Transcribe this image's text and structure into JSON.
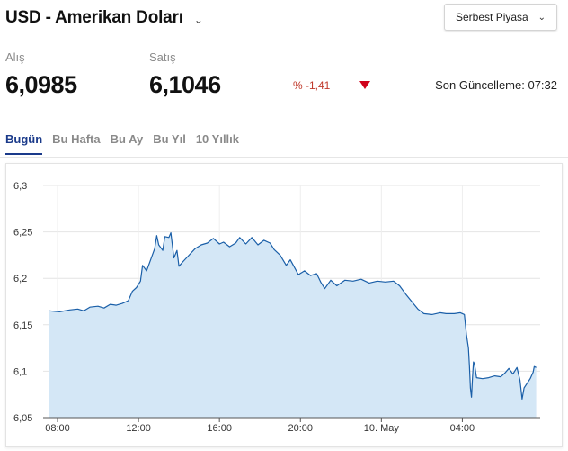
{
  "header": {
    "title": "USD - Amerikan Doları",
    "title_chevron": "⌄",
    "market_select": "Serbest Piyasa",
    "market_chevron": "⌄"
  },
  "quote": {
    "buy_label": "Alış",
    "buy_value": "6,0985",
    "sell_label": "Satış",
    "sell_value": "6,1046",
    "change_text": "% -1,41",
    "change_direction": "down",
    "change_color": "#c0392b",
    "last_update": "Son Güncelleme: 07:32"
  },
  "tabs": [
    {
      "label": "Bugün",
      "active": true
    },
    {
      "label": "Bu Hafta",
      "active": false
    },
    {
      "label": "Bu Ay",
      "active": false
    },
    {
      "label": "Bu Yıl",
      "active": false
    },
    {
      "label": "10 Yıllık",
      "active": false
    }
  ],
  "chart_data": {
    "type": "area",
    "ylim": [
      6.05,
      6.3
    ],
    "y_ticks": [
      "6,3",
      "6,25",
      "6,2",
      "6,15",
      "6,1",
      "6,05"
    ],
    "y_tick_values": [
      6.3,
      6.25,
      6.2,
      6.15,
      6.1,
      6.05
    ],
    "x_ticks": [
      "08:00",
      "12:00",
      "16:00",
      "20:00",
      "10. May",
      "04:00"
    ],
    "x_tick_hours": [
      8,
      12,
      16,
      20,
      24,
      28
    ],
    "xlim_hours": [
      7.6,
      31.8
    ],
    "line_color": "#1a5fa8",
    "fill_color": "#d4e7f6",
    "grid": true,
    "series": [
      {
        "values": [
          [
            7.6,
            6.165
          ],
          [
            8.1,
            6.164
          ],
          [
            8.6,
            6.166
          ],
          [
            9.0,
            6.167
          ],
          [
            9.3,
            6.165
          ],
          [
            9.6,
            6.169
          ],
          [
            10.0,
            6.17
          ],
          [
            10.3,
            6.168
          ],
          [
            10.6,
            6.172
          ],
          [
            10.9,
            6.171
          ],
          [
            11.2,
            6.173
          ],
          [
            11.5,
            6.176
          ],
          [
            11.7,
            6.186
          ],
          [
            11.9,
            6.19
          ],
          [
            12.1,
            6.197
          ],
          [
            12.2,
            6.214
          ],
          [
            12.4,
            6.208
          ],
          [
            12.6,
            6.22
          ],
          [
            12.8,
            6.232
          ],
          [
            12.9,
            6.246
          ],
          [
            13.0,
            6.236
          ],
          [
            13.2,
            6.23
          ],
          [
            13.3,
            6.245
          ],
          [
            13.5,
            6.244
          ],
          [
            13.6,
            6.249
          ],
          [
            13.75,
            6.222
          ],
          [
            13.9,
            6.23
          ],
          [
            14.0,
            6.213
          ],
          [
            14.2,
            6.218
          ],
          [
            14.5,
            6.225
          ],
          [
            14.8,
            6.232
          ],
          [
            15.1,
            6.236
          ],
          [
            15.4,
            6.238
          ],
          [
            15.7,
            6.243
          ],
          [
            16.0,
            6.237
          ],
          [
            16.2,
            6.239
          ],
          [
            16.5,
            6.234
          ],
          [
            16.8,
            6.238
          ],
          [
            17.0,
            6.244
          ],
          [
            17.3,
            6.237
          ],
          [
            17.6,
            6.244
          ],
          [
            17.9,
            6.236
          ],
          [
            18.2,
            6.241
          ],
          [
            18.5,
            6.238
          ],
          [
            18.7,
            6.231
          ],
          [
            19.0,
            6.225
          ],
          [
            19.3,
            6.214
          ],
          [
            19.5,
            6.22
          ],
          [
            19.7,
            6.212
          ],
          [
            19.9,
            6.204
          ],
          [
            20.2,
            6.208
          ],
          [
            20.5,
            6.203
          ],
          [
            20.8,
            6.205
          ],
          [
            21.0,
            6.196
          ],
          [
            21.2,
            6.189
          ],
          [
            21.5,
            6.198
          ],
          [
            21.8,
            6.192
          ],
          [
            22.2,
            6.198
          ],
          [
            22.6,
            6.197
          ],
          [
            23.0,
            6.199
          ],
          [
            23.4,
            6.195
          ],
          [
            23.8,
            6.197
          ],
          [
            24.2,
            6.196
          ],
          [
            24.6,
            6.197
          ],
          [
            24.9,
            6.192
          ],
          [
            25.2,
            6.183
          ],
          [
            25.5,
            6.175
          ],
          [
            25.8,
            6.167
          ],
          [
            26.1,
            6.162
          ],
          [
            26.5,
            6.161
          ],
          [
            26.9,
            6.163
          ],
          [
            27.2,
            6.162
          ],
          [
            27.6,
            6.162
          ],
          [
            27.9,
            6.163
          ],
          [
            28.1,
            6.161
          ],
          [
            28.2,
            6.14
          ],
          [
            28.3,
            6.125
          ],
          [
            28.35,
            6.106
          ],
          [
            28.4,
            6.082
          ],
          [
            28.45,
            6.072
          ],
          [
            28.5,
            6.093
          ],
          [
            28.55,
            6.11
          ],
          [
            28.6,
            6.108
          ],
          [
            28.7,
            6.093
          ],
          [
            29.0,
            6.092
          ],
          [
            29.3,
            6.093
          ],
          [
            29.6,
            6.095
          ],
          [
            29.9,
            6.094
          ],
          [
            30.1,
            6.098
          ],
          [
            30.3,
            6.103
          ],
          [
            30.5,
            6.097
          ],
          [
            30.7,
            6.104
          ],
          [
            30.85,
            6.09
          ],
          [
            30.95,
            6.07
          ],
          [
            31.05,
            6.082
          ],
          [
            31.2,
            6.087
          ],
          [
            31.35,
            6.092
          ],
          [
            31.5,
            6.099
          ],
          [
            31.55,
            6.105
          ],
          [
            31.65,
            6.104
          ]
        ]
      }
    ]
  }
}
